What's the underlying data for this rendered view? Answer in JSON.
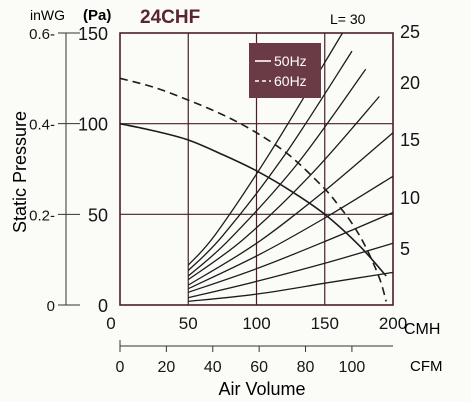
{
  "chart_data": {
    "type": "line",
    "title": "24CHF",
    "length_label": "L=  30",
    "unit_labels": {
      "inwg": "inWG",
      "pa": "(Pa)"
    },
    "ylabel": "Static Pressure",
    "xlabel": "Air Volume",
    "x_unit_cmh": "CMH",
    "x_unit_cfm": "CFM",
    "xlim_cmh": [
      0,
      200
    ],
    "ylim_pa": [
      0,
      150
    ],
    "grid": true,
    "legend": {
      "position": "top-right",
      "items": [
        "50Hz",
        "60Hz"
      ],
      "background": "#6a3b45"
    },
    "x_ticks_cmh": [
      "0",
      "50",
      "100",
      "150",
      "200"
    ],
    "x_ticks_cfm": [
      "0",
      "20",
      "40",
      "60",
      "80",
      "100"
    ],
    "cfm_tick_values": [
      0,
      20,
      40,
      60,
      80,
      100
    ],
    "y_ticks_pa": [
      "0",
      "50",
      "100",
      "150"
    ],
    "y_ticks_inwg": [
      "0",
      "0.2-",
      "0.4-",
      "0.6-"
    ],
    "y_ticks_inwg_values": [
      0,
      0.2,
      0.4,
      0.6
    ],
    "right_labels": [
      "5",
      "10",
      "15",
      "20",
      "25"
    ],
    "series": [
      {
        "name": "50Hz",
        "dash": "solid",
        "x": [
          0,
          25,
          50,
          75,
          100,
          125,
          150,
          175,
          195
        ],
        "y": [
          100,
          96,
          91,
          83,
          74,
          63,
          50,
          33,
          16
        ]
      },
      {
        "name": "60Hz",
        "dash": "dashed",
        "x": [
          0,
          25,
          50,
          75,
          100,
          125,
          150,
          160,
          170,
          180,
          190,
          195
        ],
        "y": [
          125,
          120,
          113,
          105,
          95,
          82,
          64,
          55,
          45,
          32,
          15,
          2
        ]
      }
    ],
    "system_curves": [
      {
        "label": "5",
        "x": [
          50,
          100,
          150,
          200
        ],
        "y": [
          2,
          6,
          12,
          18
        ]
      },
      {
        "label": "",
        "x": [
          50,
          100,
          150,
          200
        ],
        "y": [
          4,
          13,
          23,
          34
        ]
      },
      {
        "label": "10",
        "x": [
          50,
          100,
          150,
          200
        ],
        "y": [
          7,
          20,
          35,
          51
        ]
      },
      {
        "label": "",
        "x": [
          50,
          100,
          150,
          200
        ],
        "y": [
          9,
          27,
          48,
          71
        ]
      },
      {
        "label": "15",
        "x": [
          50,
          100,
          150,
          200
        ],
        "y": [
          11,
          34,
          63,
          95
        ]
      },
      {
        "label": "",
        "x": [
          50,
          90,
          140,
          190
        ],
        "y": [
          14,
          36,
          72,
          115
        ]
      },
      {
        "label": "20",
        "x": [
          50,
          80,
          130,
          180
        ],
        "y": [
          16,
          36,
          78,
          130
        ]
      },
      {
        "label": "",
        "x": [
          50,
          75,
          120,
          170
        ],
        "y": [
          19,
          38,
          82,
          140
        ]
      },
      {
        "label": "25",
        "x": [
          50,
          70,
          110,
          163
        ],
        "y": [
          22,
          39,
          84,
          150
        ]
      }
    ],
    "colors": {
      "line": "#1c1c1c",
      "grid": "#4b1f2a",
      "title": "#5a2435"
    }
  }
}
